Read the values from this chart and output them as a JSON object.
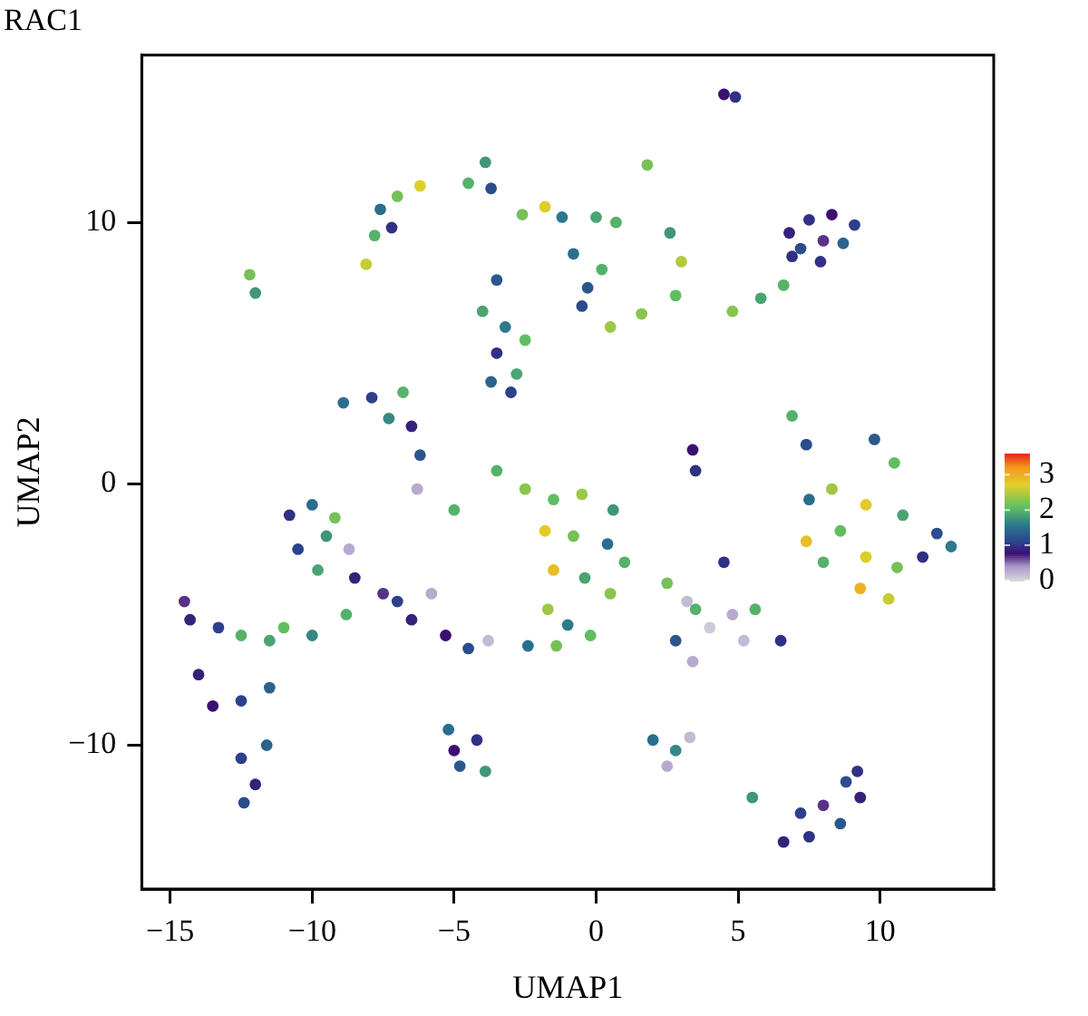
{
  "chart_data": {
    "type": "scatter",
    "title": "RAC1",
    "xlabel": "UMAP1",
    "ylabel": "UMAP2",
    "marker": "circle",
    "grid": false,
    "legend": false,
    "xlim": [
      -16,
      14
    ],
    "ylim": [
      -15.5,
      16.4
    ],
    "xticks": [
      -15,
      -10,
      -5,
      0,
      5,
      10
    ],
    "yticks": [
      -10,
      0,
      10
    ],
    "clim": [
      0,
      3.6
    ],
    "cticks": [
      0,
      1,
      2,
      3
    ],
    "x": [
      4.9,
      4.5,
      6.8,
      7.5,
      8.3,
      9.1,
      8.0,
      7.2,
      8.7,
      7.9,
      -8.1,
      -7.8,
      -7.6,
      -7.0,
      -6.2,
      -7.2,
      -4.5,
      -3.9,
      -3.7,
      -12.2,
      -12.0,
      -4.0,
      -3.5,
      -3.2,
      -3.5,
      -2.8,
      -3.7,
      -3.0,
      -2.5,
      -2.6,
      -1.8,
      -1.2,
      0.0,
      -0.8,
      -0.3,
      0.2,
      0.5,
      1.6,
      2.8,
      3.0,
      2.6,
      1.8,
      0.7,
      -0.5,
      4.8,
      5.8,
      6.6,
      6.9,
      -8.9,
      -7.9,
      -6.8,
      -7.3,
      -6.5,
      -6.2,
      -6.3,
      -5.0,
      6.9,
      7.4,
      9.8,
      10.5,
      7.5,
      8.3,
      9.5,
      10.8,
      12.0,
      8.6,
      9.5,
      10.6,
      11.5,
      9.3,
      10.3,
      7.4,
      8.0,
      12.5,
      -1.5,
      -0.5,
      0.6,
      -1.8,
      -0.8,
      0.4,
      1.0,
      -1.5,
      -0.4,
      0.5,
      -1.7,
      -1.0,
      -0.2,
      -1.4,
      -3.5,
      -2.5,
      2.5,
      3.5,
      -10.8,
      -10.0,
      -9.2,
      -10.5,
      -9.5,
      -8.7,
      -9.8,
      -8.5,
      -7.5,
      -8.8,
      -7.0,
      3.2,
      4.0,
      4.8,
      5.2,
      3.4,
      2.8,
      4.5,
      5.6,
      -14.5,
      -14.3,
      -13.3,
      -12.5,
      -11.5,
      -11.0,
      -10.0,
      -6.5,
      -5.3,
      -4.5,
      -3.8,
      -5.8,
      -2.4,
      -14.0,
      -13.5,
      -12.5,
      -11.5,
      -12.5,
      -12.0,
      -11.6,
      -12.4,
      -5.2,
      -4.2,
      -4.8,
      -3.9,
      -5.0,
      2.0,
      2.8,
      3.3,
      2.5,
      6.6,
      7.5,
      8.0,
      8.8,
      9.3,
      7.2,
      8.6,
      5.5,
      9.2,
      3.4,
      3.5,
      6.5
    ],
    "values": [
      14.8,
      14.9,
      9.6,
      10.1,
      10.3,
      9.9,
      9.3,
      9.0,
      9.2,
      8.5,
      8.4,
      9.5,
      10.5,
      11.0,
      11.4,
      9.8,
      11.5,
      12.3,
      11.3,
      8.0,
      7.3,
      6.6,
      7.8,
      6.0,
      5.0,
      4.2,
      3.9,
      3.5,
      5.5,
      10.3,
      10.6,
      10.2,
      10.2,
      8.8,
      7.5,
      8.2,
      6.0,
      6.5,
      7.2,
      8.5,
      9.6,
      12.2,
      10.0,
      6.8,
      6.6,
      7.1,
      7.6,
      8.7,
      3.1,
      3.3,
      3.5,
      2.5,
      2.2,
      1.1,
      -0.2,
      -1.0,
      2.6,
      1.5,
      1.7,
      0.8,
      -0.6,
      -0.2,
      -0.8,
      -1.2,
      -1.9,
      -1.8,
      -2.8,
      -3.2,
      -2.8,
      -4.0,
      -4.4,
      -2.2,
      -3.0,
      -2.4,
      -0.6,
      -0.4,
      -1.0,
      -1.8,
      -2.0,
      -2.3,
      -3.0,
      -3.3,
      -3.6,
      -4.2,
      -4.8,
      -5.4,
      -5.8,
      -6.2,
      0.5,
      -0.2,
      -3.8,
      -4.8,
      -1.2,
      -0.8,
      -1.3,
      -2.5,
      -2.0,
      -2.5,
      -3.3,
      -3.6,
      -4.2,
      -5.0,
      -4.5,
      -4.5,
      -5.5,
      -5.0,
      -6.0,
      -6.8,
      -6.0,
      -3.0,
      -4.8,
      -4.5,
      -5.2,
      -5.5,
      -5.8,
      -6.0,
      -5.5,
      -5.8,
      -5.2,
      -5.8,
      -6.3,
      -6.0,
      -4.2,
      -6.2,
      -7.3,
      -8.5,
      -8.3,
      -7.8,
      -10.5,
      -11.5,
      -10.0,
      -12.2,
      -9.4,
      -9.8,
      -10.8,
      -11.0,
      -10.2,
      -9.8,
      -10.2,
      -9.7,
      -10.8,
      -13.7,
      -13.5,
      -12.3,
      -11.4,
      -12.0,
      -12.6,
      -13.0,
      -12.0,
      -11.0,
      1.3,
      0.5,
      -6.0
    ],
    "cvalues": [
      1.0,
      0.8,
      0.9,
      1.0,
      0.8,
      1.1,
      0.7,
      1.2,
      1.4,
      1.0,
      2.6,
      2.0,
      1.5,
      2.2,
      2.7,
      1.0,
      2.0,
      1.8,
      1.2,
      2.2,
      1.8,
      1.9,
      1.3,
      1.6,
      1.0,
      1.9,
      1.4,
      1.1,
      2.1,
      2.2,
      2.7,
      1.6,
      1.9,
      1.5,
      1.3,
      2.0,
      2.4,
      2.3,
      2.1,
      2.5,
      1.8,
      2.2,
      2.0,
      1.2,
      2.3,
      1.9,
      2.0,
      1.0,
      1.5,
      1.1,
      2.0,
      1.7,
      0.9,
      1.3,
      0.3,
      2.0,
      2.0,
      1.2,
      1.3,
      2.1,
      1.5,
      2.4,
      2.8,
      1.9,
      1.2,
      2.1,
      2.7,
      2.2,
      1.0,
      3.0,
      2.6,
      2.9,
      2.0,
      1.6,
      2.1,
      2.4,
      1.8,
      2.8,
      2.2,
      1.5,
      2.0,
      2.9,
      1.9,
      2.3,
      2.4,
      1.6,
      2.1,
      2.2,
      2.0,
      2.3,
      2.2,
      2.0,
      1.0,
      1.5,
      2.2,
      1.1,
      1.8,
      0.3,
      1.9,
      0.9,
      0.7,
      2.0,
      1.1,
      0.2,
      0.1,
      0.3,
      0.2,
      0.3,
      1.3,
      1.0,
      2.0,
      0.7,
      0.9,
      1.1,
      2.0,
      1.9,
      2.1,
      1.7,
      0.9,
      0.8,
      1.2,
      0.2,
      0.3,
      1.5,
      0.9,
      0.8,
      1.1,
      1.4,
      1.1,
      0.9,
      1.4,
      1.2,
      1.5,
      1.0,
      1.3,
      1.8,
      0.8,
      1.5,
      1.7,
      0.2,
      0.3,
      0.9,
      1.0,
      0.7,
      1.2,
      0.9,
      1.1,
      1.3,
      1.8,
      1.0,
      0.8,
      1.0,
      1.0
    ]
  }
}
